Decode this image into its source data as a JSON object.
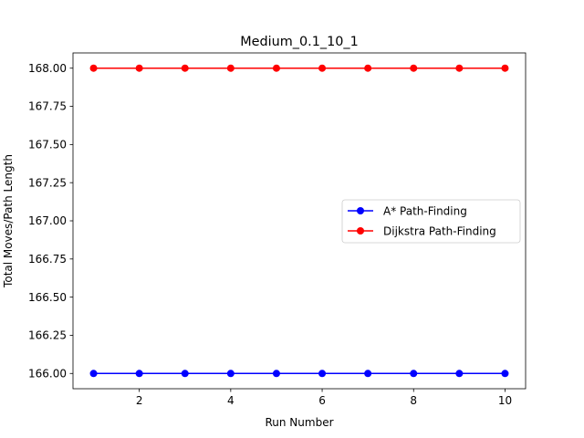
{
  "chart_data": {
    "type": "line",
    "title": "Medium_0.1_10_1",
    "xlabel": "Run Number",
    "ylabel": "Total Moves/Path Length",
    "x": [
      1,
      2,
      3,
      4,
      5,
      6,
      7,
      8,
      9,
      10
    ],
    "xlim": [
      0.55,
      10.45
    ],
    "ylim": [
      165.9,
      168.1
    ],
    "xticks": [
      2,
      4,
      6,
      8,
      10
    ],
    "yticks": [
      "166.00",
      "166.25",
      "166.50",
      "166.75",
      "167.00",
      "167.25",
      "167.50",
      "167.75",
      "168.00"
    ],
    "grid": false,
    "legend_position": "center-right",
    "series": [
      {
        "name": "A* Path-Finding",
        "color": "#0000ff",
        "marker": "circle",
        "values": [
          166,
          166,
          166,
          166,
          166,
          166,
          166,
          166,
          166,
          166
        ]
      },
      {
        "name": "Dijkstra Path-Finding",
        "color": "#ff0000",
        "marker": "circle",
        "values": [
          168,
          168,
          168,
          168,
          168,
          168,
          168,
          168,
          168,
          168
        ]
      }
    ]
  }
}
